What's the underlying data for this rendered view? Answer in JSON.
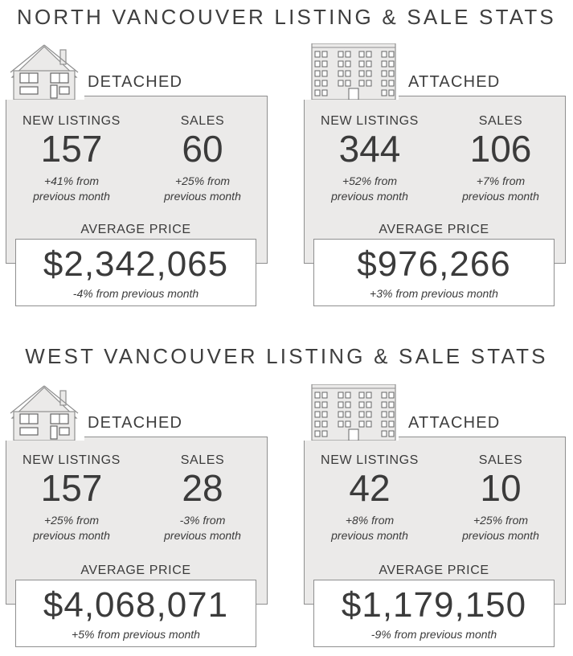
{
  "north": {
    "title": "NORTH VANCOUVER LISTING & SALE STATS",
    "detached": {
      "type": "DETACHED",
      "new_listings_label": "NEW LISTINGS",
      "new_listings": "157",
      "new_listings_change_1": "+41% from",
      "new_listings_change_2": "previous month",
      "sales_label": "SALES",
      "sales": "60",
      "sales_change_1": "+25% from",
      "sales_change_2": "previous month",
      "avg_label": "AVERAGE PRICE",
      "avg_price": "$2,342,065",
      "avg_change": "-4% from previous month"
    },
    "attached": {
      "type": "ATTACHED",
      "new_listings_label": "NEW LISTINGS",
      "new_listings": "344",
      "new_listings_change_1": "+52% from",
      "new_listings_change_2": "previous month",
      "sales_label": "SALES",
      "sales": "106",
      "sales_change_1": "+7% from",
      "sales_change_2": "previous month",
      "avg_label": "AVERAGE PRICE",
      "avg_price": "$976,266",
      "avg_change": "+3% from previous month"
    }
  },
  "west": {
    "title": "WEST VANCOUVER LISTING & SALE STATS",
    "detached": {
      "type": "DETACHED",
      "new_listings_label": "NEW LISTINGS",
      "new_listings": "157",
      "new_listings_change_1": "+25% from",
      "new_listings_change_2": "previous month",
      "sales_label": "SALES",
      "sales": "28",
      "sales_change_1": "-3% from",
      "sales_change_2": "previous month",
      "avg_label": "AVERAGE PRICE",
      "avg_price": "$4,068,071",
      "avg_change": "+5% from previous month"
    },
    "attached": {
      "type": "ATTACHED",
      "new_listings_label": "NEW LISTINGS",
      "new_listings": "42",
      "new_listings_change_1": "+8% from",
      "new_listings_change_2": "previous month",
      "sales_label": "SALES",
      "sales": "10",
      "sales_change_1": "+25% from",
      "sales_change_2": "previous month",
      "avg_label": "AVERAGE PRICE",
      "avg_price": "$1,179,150",
      "avg_change": "-9% from previous month"
    }
  },
  "icons": {
    "detached": "house-icon",
    "attached": "apartment-building-icon"
  },
  "colors": {
    "panel": "#ebeae9",
    "border": "#8f8f8f",
    "text": "#3b3b3b"
  }
}
